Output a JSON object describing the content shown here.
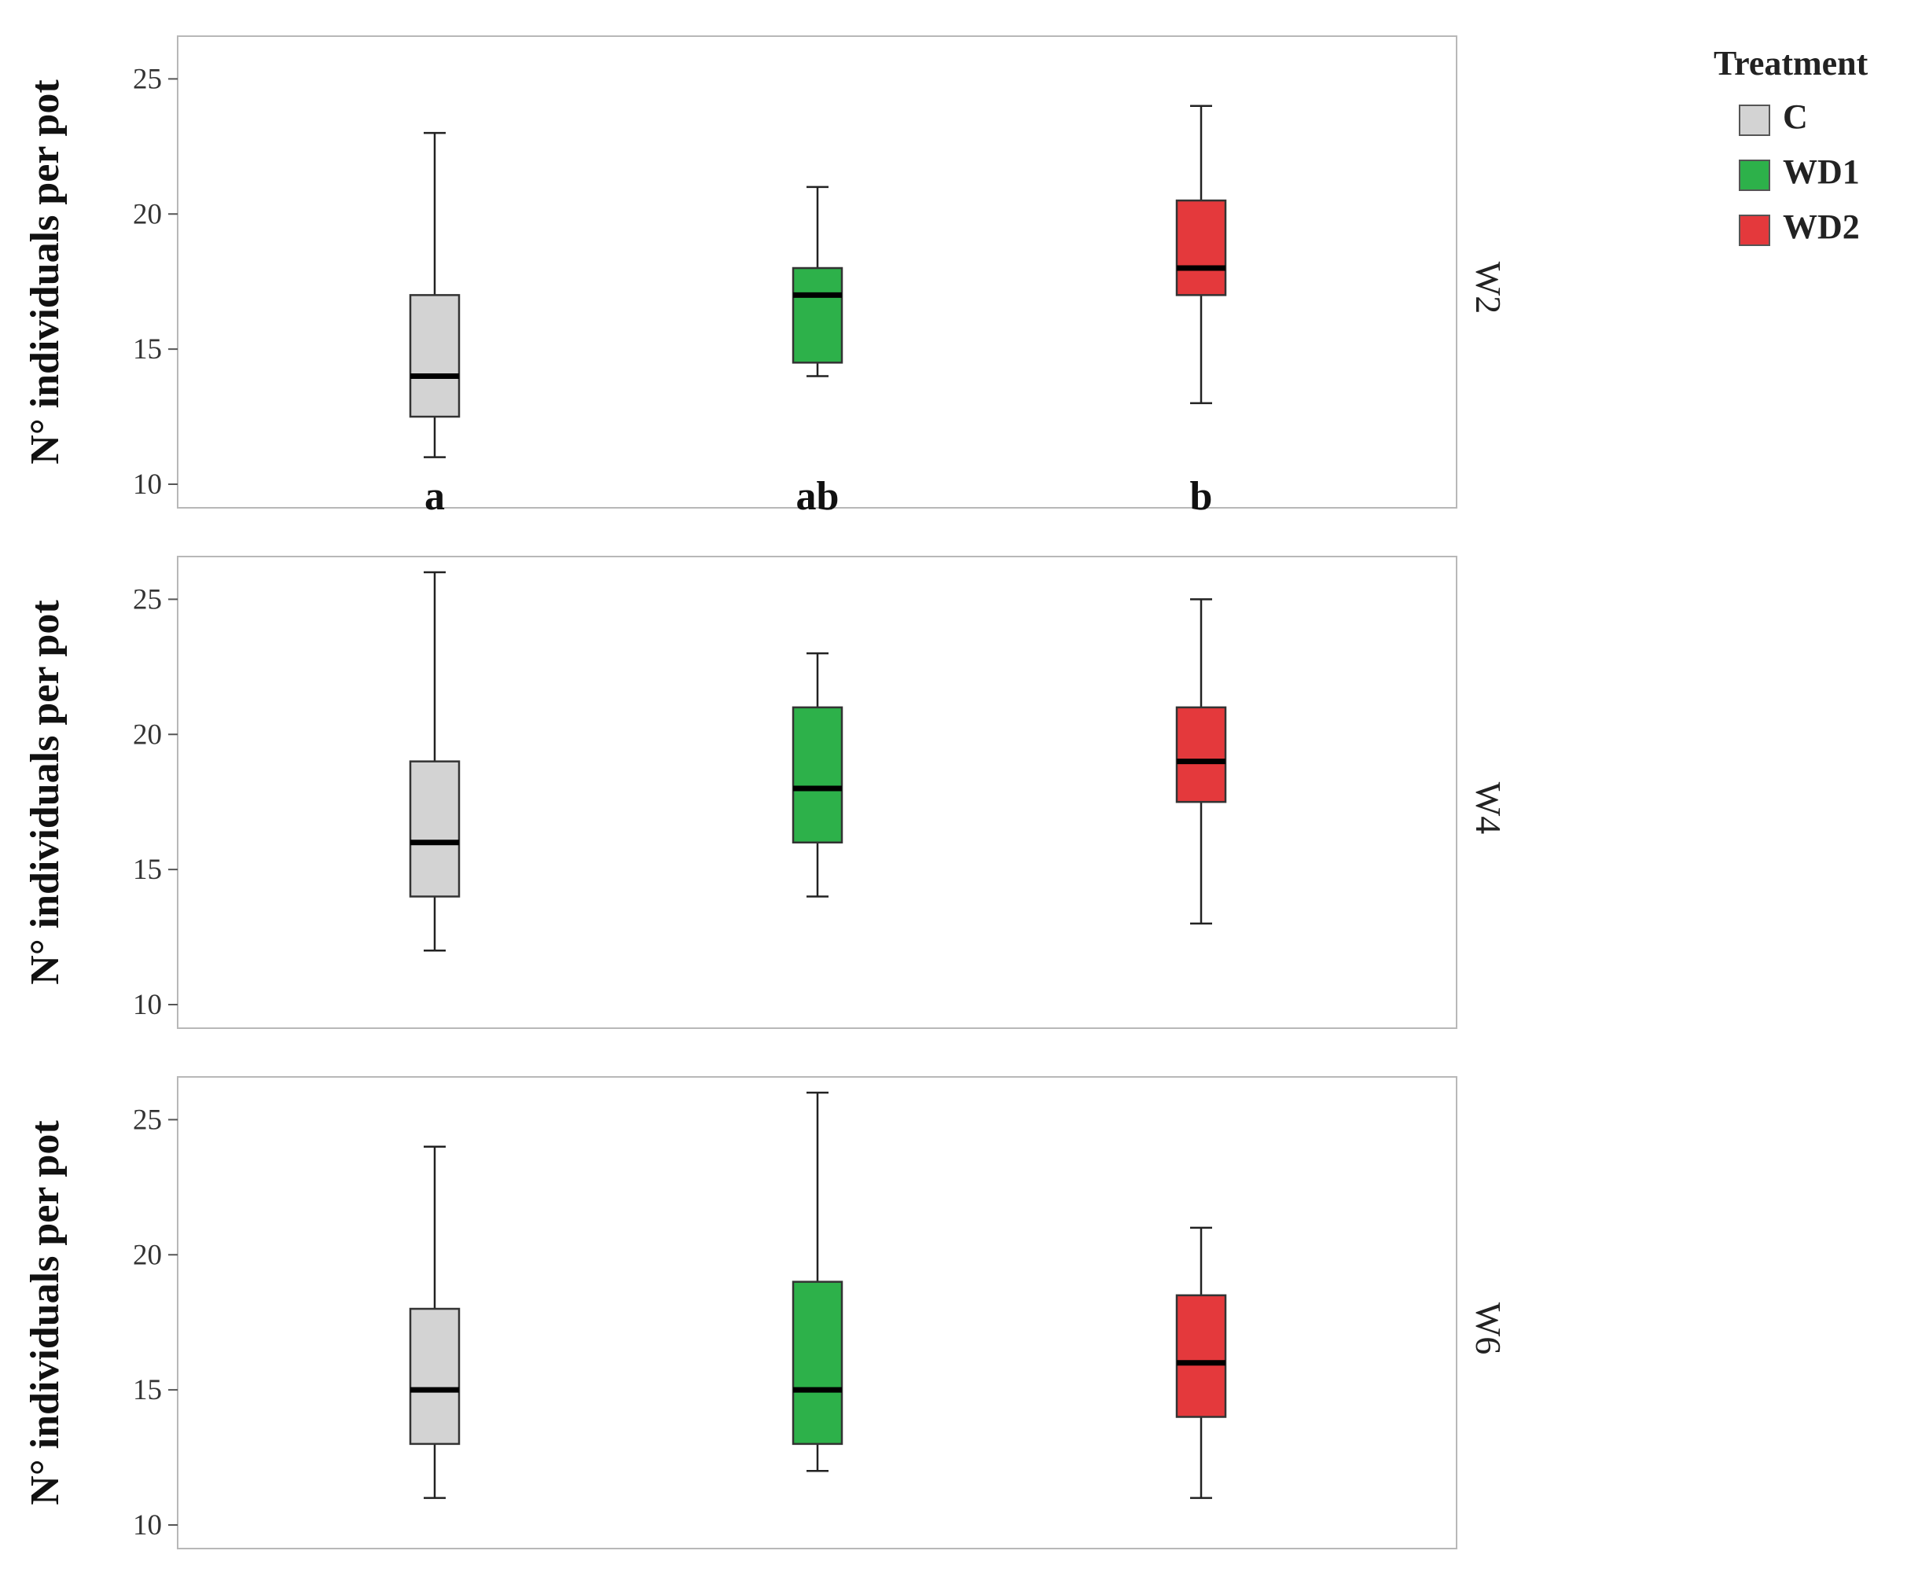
{
  "chart_data": [
    {
      "type": "box",
      "panel": "W2",
      "ylabel": "N° individuals per pot",
      "ylim": [
        10,
        26
      ],
      "yticks": [
        10,
        15,
        20,
        25
      ],
      "categories": [
        "C",
        "WD1",
        "WD2"
      ],
      "significance": [
        "a",
        "ab",
        "b"
      ],
      "boxes": [
        {
          "group": "C",
          "min": 11,
          "q1": 12.5,
          "median": 14,
          "q3": 17,
          "max": 23
        },
        {
          "group": "WD1",
          "min": 14,
          "q1": 14.5,
          "median": 17,
          "q3": 18,
          "max": 21
        },
        {
          "group": "WD2",
          "min": 13,
          "q1": 17,
          "median": 18,
          "q3": 20.5,
          "max": 24
        }
      ]
    },
    {
      "type": "box",
      "panel": "W4",
      "ylabel": "N° individuals per pot",
      "ylim": [
        10,
        26
      ],
      "yticks": [
        10,
        15,
        20,
        25
      ],
      "categories": [
        "C",
        "WD1",
        "WD2"
      ],
      "significance": [],
      "boxes": [
        {
          "group": "C",
          "min": 12,
          "q1": 14,
          "median": 16,
          "q3": 19,
          "max": 26
        },
        {
          "group": "WD1",
          "min": 14,
          "q1": 16,
          "median": 18,
          "q3": 21,
          "max": 23
        },
        {
          "group": "WD2",
          "min": 13,
          "q1": 17.5,
          "median": 19,
          "q3": 21,
          "max": 25
        }
      ]
    },
    {
      "type": "box",
      "panel": "W6",
      "ylabel": "N° individuals per pot",
      "ylim": [
        10,
        26
      ],
      "yticks": [
        10,
        15,
        20,
        25
      ],
      "categories": [
        "C",
        "WD1",
        "WD2"
      ],
      "significance": [],
      "boxes": [
        {
          "group": "C",
          "min": 11,
          "q1": 13,
          "median": 15,
          "q3": 18,
          "max": 24
        },
        {
          "group": "WD1",
          "min": 12,
          "q1": 13,
          "median": 15,
          "q3": 19,
          "max": 26
        },
        {
          "group": "WD2",
          "min": 11,
          "q1": 14,
          "median": 16,
          "q3": 18.5,
          "max": 21
        }
      ]
    }
  ],
  "legend": {
    "title": "Treatment",
    "items": [
      {
        "label": "C",
        "color": "#d3d3d3"
      },
      {
        "label": "WD1",
        "color": "#2db14a"
      },
      {
        "label": "WD2",
        "color": "#e4393c"
      }
    ]
  }
}
